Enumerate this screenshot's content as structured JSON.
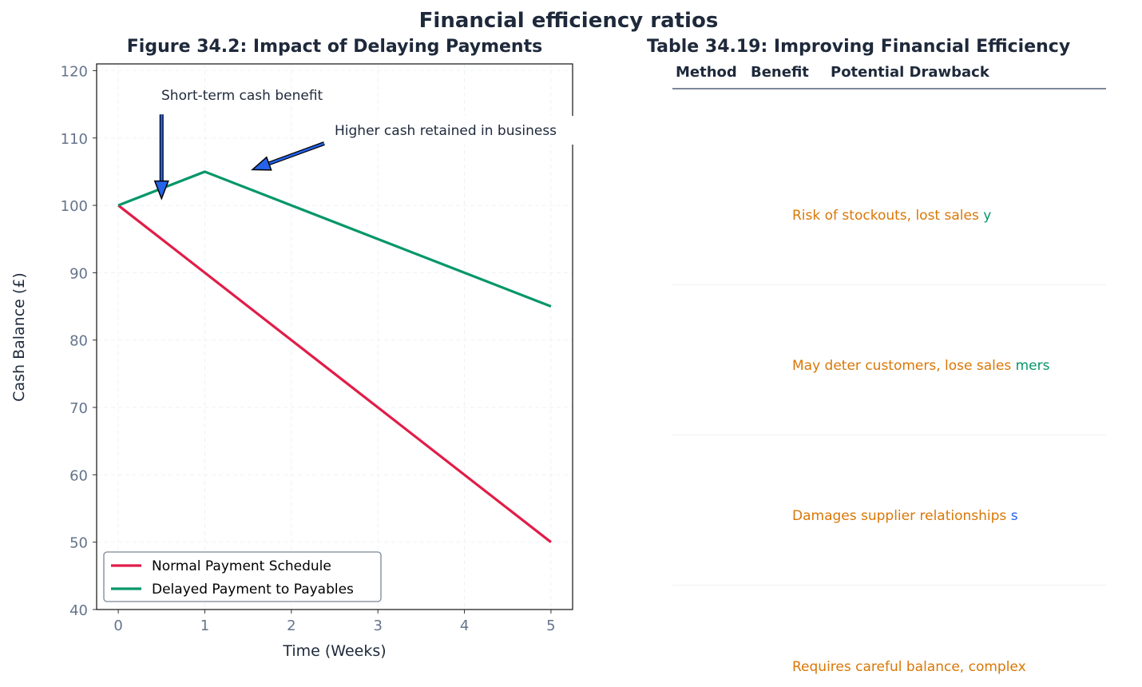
{
  "suptitle": "Financial efficiency ratios",
  "chart_data": {
    "type": "line",
    "title": "Figure 34.2: Impact of Delaying Payments",
    "xlabel": "Time (Weeks)",
    "ylabel": "Cash Balance (£)",
    "xlim": [
      -0.25,
      5.25
    ],
    "ylim": [
      40,
      121
    ],
    "xticks": [
      0,
      1,
      2,
      3,
      4,
      5
    ],
    "yticks": [
      40,
      50,
      60,
      70,
      80,
      90,
      100,
      110,
      120
    ],
    "grid": true,
    "legend_position": "lower-left",
    "x": [
      0,
      1,
      2,
      3,
      4,
      5
    ],
    "series": [
      {
        "name": "Normal Payment Schedule",
        "values": [
          100,
          90,
          80,
          70,
          60,
          50
        ],
        "color": "#e11d48"
      },
      {
        "name": "Delayed Payment to Payables",
        "values": [
          100,
          105,
          100,
          95,
          90,
          85
        ],
        "color": "#059669"
      }
    ],
    "annotations": [
      {
        "text": "Short-term cash benefit",
        "xy": [
          0.5,
          101
        ],
        "xytext": [
          0.5,
          113.5
        ],
        "arrow_color": "#2563eb"
      },
      {
        "text": "Higher cash retained in business",
        "xy": [
          1.55,
          105.3
        ],
        "xytext": [
          2.38,
          109.2
        ],
        "arrow_color": "#2563eb"
      }
    ]
  },
  "table": {
    "title": "Table 34.19: Improving Financial Efficiency",
    "header_labels": [
      "Method",
      "Benefit",
      "Potential Drawback"
    ],
    "rows": [
      {
        "drawback": "Risk of stockouts, lost sales",
        "fragment": "y",
        "fragment_color": "#059669"
      },
      {
        "drawback": "May deter customers, lose sales",
        "fragment": "mers",
        "fragment_color": "#059669"
      },
      {
        "drawback": "Damages supplier relationships",
        "fragment": "s",
        "fragment_color": "#2563eb"
      },
      {
        "drawback": "Requires careful balance, complex",
        "fragment": "",
        "fragment_color": "#059669"
      }
    ],
    "drawback_color": "#d97706"
  }
}
